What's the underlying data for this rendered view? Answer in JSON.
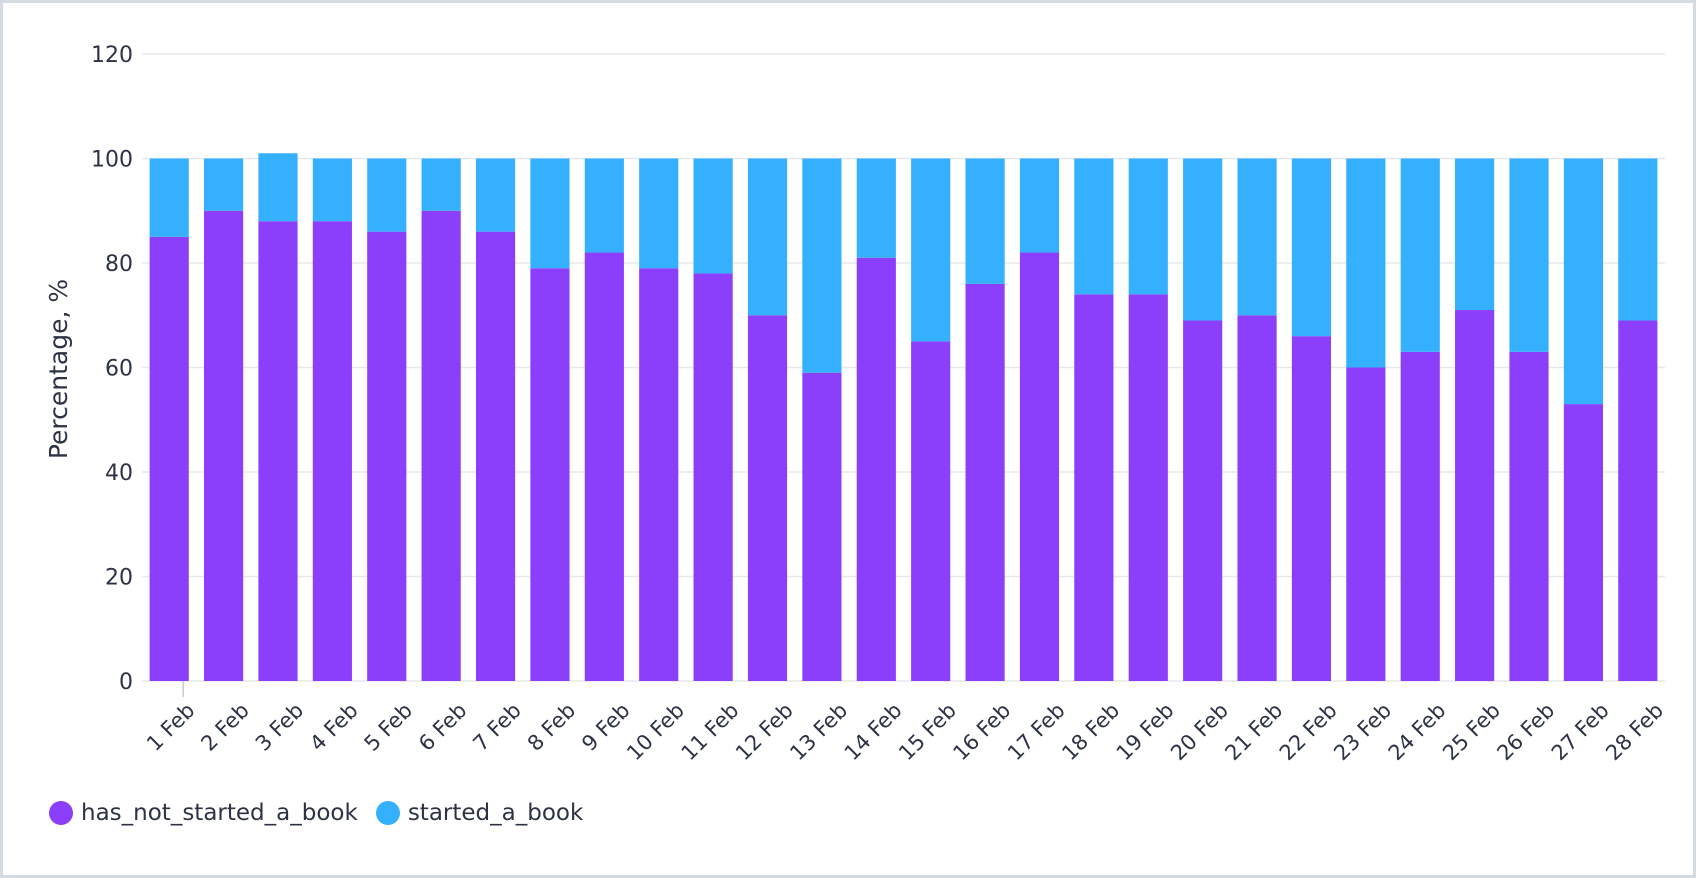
{
  "chart_data": {
    "type": "bar",
    "stacked": true,
    "title": "",
    "xlabel": "",
    "ylabel": "Percentage, %",
    "ylim": [
      0,
      120
    ],
    "yticks": [
      0,
      20,
      40,
      60,
      80,
      100,
      120
    ],
    "grid": true,
    "legend_position": "bottom-left",
    "categories": [
      "1 Feb",
      "2 Feb",
      "3 Feb",
      "4 Feb",
      "5 Feb",
      "6 Feb",
      "7 Feb",
      "8 Feb",
      "9 Feb",
      "10 Feb",
      "11 Feb",
      "12 Feb",
      "13 Feb",
      "14 Feb",
      "15 Feb",
      "16 Feb",
      "17 Feb",
      "18 Feb",
      "19 Feb",
      "20 Feb",
      "21 Feb",
      "22 Feb",
      "23 Feb",
      "24 Feb",
      "25 Feb",
      "26 Feb",
      "27 Feb",
      "28 Feb"
    ],
    "series": [
      {
        "name": "has_not_started_a_book",
        "color": "#8c3ffb",
        "values": [
          85,
          90,
          88,
          88,
          86,
          90,
          86,
          79,
          82,
          79,
          78,
          70,
          59,
          81,
          65,
          76,
          82,
          74,
          74,
          69,
          70,
          66,
          60,
          63,
          71,
          63,
          53,
          69
        ]
      },
      {
        "name": "started_a_book",
        "color": "#34b0ff",
        "values": [
          15,
          10,
          13,
          12,
          14,
          10,
          14,
          21,
          18,
          21,
          22,
          30,
          41,
          19,
          35,
          24,
          18,
          26,
          26,
          31,
          30,
          34,
          40,
          37,
          29,
          37,
          47,
          31
        ]
      }
    ]
  },
  "colors": {
    "grid": "#e6e8ec",
    "axis_text": "#2c3345",
    "frame_border": "#d5dbe3"
  }
}
